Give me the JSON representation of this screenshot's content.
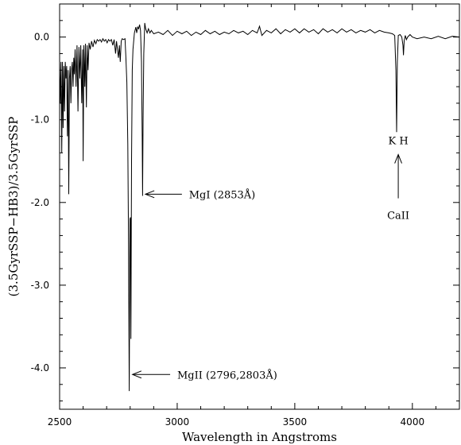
{
  "chart_data": {
    "type": "line",
    "title": "",
    "xlabel": "Wavelength in Angstroms",
    "ylabel": "(3.5GyrSSP−HB3)/3.5GyrSSP",
    "xlim": [
      2500,
      4200
    ],
    "ylim": [
      -4.5,
      0.4
    ],
    "x_ticks": [
      2500,
      3000,
      3500,
      4000
    ],
    "x_tick_labels": [
      "2500",
      "3000",
      "3500",
      "4000"
    ],
    "y_ticks": [
      0.0,
      -1.0,
      -2.0,
      -3.0,
      -4.0
    ],
    "y_tick_labels": [
      "0.0",
      "-1.0",
      "-2.0",
      "-3.0",
      "-4.0"
    ],
    "grid": false,
    "line_color": "#000000",
    "series": [
      {
        "points": [
          [
            2500,
            -0.3
          ],
          [
            2503,
            -0.8
          ],
          [
            2506,
            -0.3
          ],
          [
            2509,
            -1.4
          ],
          [
            2512,
            -0.3
          ],
          [
            2515,
            -1.1
          ],
          [
            2518,
            -0.35
          ],
          [
            2521,
            -0.9
          ],
          [
            2524,
            -0.3
          ],
          [
            2527,
            -0.5
          ],
          [
            2530,
            -0.35
          ],
          [
            2533,
            -1.2
          ],
          [
            2536,
            -0.4
          ],
          [
            2539,
            -1.9
          ],
          [
            2542,
            -0.5
          ],
          [
            2545,
            -0.35
          ],
          [
            2548,
            -0.8
          ],
          [
            2551,
            -0.4
          ],
          [
            2554,
            -0.3
          ],
          [
            2557,
            -0.6
          ],
          [
            2560,
            -0.25
          ],
          [
            2563,
            -0.45
          ],
          [
            2566,
            -0.15
          ],
          [
            2570,
            -0.6
          ],
          [
            2574,
            -0.1
          ],
          [
            2578,
            -0.9
          ],
          [
            2582,
            -0.12
          ],
          [
            2586,
            -0.5
          ],
          [
            2590,
            -0.1
          ],
          [
            2594,
            -0.8
          ],
          [
            2598,
            -0.15
          ],
          [
            2600,
            -1.5
          ],
          [
            2603,
            -0.1
          ],
          [
            2607,
            -0.6
          ],
          [
            2610,
            -0.08
          ],
          [
            2614,
            -0.85
          ],
          [
            2617,
            -0.1
          ],
          [
            2621,
            -0.4
          ],
          [
            2625,
            -0.07
          ],
          [
            2630,
            -0.15
          ],
          [
            2636,
            -0.05
          ],
          [
            2642,
            -0.12
          ],
          [
            2648,
            -0.04
          ],
          [
            2654,
            -0.08
          ],
          [
            2660,
            -0.03
          ],
          [
            2666,
            -0.05
          ],
          [
            2672,
            -0.03
          ],
          [
            2678,
            -0.06
          ],
          [
            2684,
            -0.02
          ],
          [
            2690,
            -0.05
          ],
          [
            2696,
            -0.03
          ],
          [
            2702,
            -0.07
          ],
          [
            2708,
            -0.03
          ],
          [
            2714,
            -0.05
          ],
          [
            2720,
            -0.03
          ],
          [
            2726,
            -0.1
          ],
          [
            2732,
            -0.03
          ],
          [
            2738,
            -0.2
          ],
          [
            2742,
            -0.05
          ],
          [
            2746,
            -0.15
          ],
          [
            2750,
            -0.25
          ],
          [
            2754,
            -0.1
          ],
          [
            2758,
            -0.3
          ],
          [
            2762,
            -0.05
          ],
          [
            2766,
            -0.02
          ],
          [
            2772,
            -0.03
          ],
          [
            2778,
            -0.02
          ],
          [
            2782,
            -0.25
          ],
          [
            2786,
            -0.55
          ],
          [
            2790,
            -1.3
          ],
          [
            2793,
            -2.5
          ],
          [
            2796,
            -4.28
          ],
          [
            2799,
            -2.2
          ],
          [
            2801,
            -2.18
          ],
          [
            2803,
            -3.65
          ],
          [
            2806,
            -1.5
          ],
          [
            2809,
            -0.4
          ],
          [
            2812,
            -0.15
          ],
          [
            2818,
            0.05
          ],
          [
            2824,
            0.12
          ],
          [
            2828,
            0.05
          ],
          [
            2832,
            0.12
          ],
          [
            2836,
            0.1
          ],
          [
            2840,
            0.15
          ],
          [
            2844,
            0.08
          ],
          [
            2848,
            -0.3
          ],
          [
            2851,
            -1.2
          ],
          [
            2853,
            -1.92
          ],
          [
            2855,
            -1.0
          ],
          [
            2858,
            -0.2
          ],
          [
            2862,
            0.17
          ],
          [
            2866,
            0.1
          ],
          [
            2872,
            0.05
          ],
          [
            2878,
            0.1
          ],
          [
            2884,
            0.05
          ],
          [
            2890,
            0.08
          ],
          [
            2900,
            0.04
          ],
          [
            2920,
            0.06
          ],
          [
            2940,
            0.03
          ],
          [
            2960,
            0.08
          ],
          [
            2980,
            0.02
          ],
          [
            3000,
            0.07
          ],
          [
            3020,
            0.04
          ],
          [
            3040,
            0.07
          ],
          [
            3060,
            0.02
          ],
          [
            3080,
            0.06
          ],
          [
            3100,
            0.03
          ],
          [
            3120,
            0.08
          ],
          [
            3140,
            0.04
          ],
          [
            3160,
            0.07
          ],
          [
            3180,
            0.03
          ],
          [
            3200,
            0.06
          ],
          [
            3220,
            0.04
          ],
          [
            3240,
            0.08
          ],
          [
            3260,
            0.05
          ],
          [
            3280,
            0.07
          ],
          [
            3300,
            0.03
          ],
          [
            3320,
            0.08
          ],
          [
            3340,
            0.05
          ],
          [
            3350,
            0.13
          ],
          [
            3360,
            0.02
          ],
          [
            3380,
            0.08
          ],
          [
            3400,
            0.05
          ],
          [
            3420,
            0.1
          ],
          [
            3440,
            0.04
          ],
          [
            3460,
            0.09
          ],
          [
            3480,
            0.06
          ],
          [
            3500,
            0.1
          ],
          [
            3520,
            0.05
          ],
          [
            3540,
            0.1
          ],
          [
            3560,
            0.06
          ],
          [
            3580,
            0.09
          ],
          [
            3600,
            0.04
          ],
          [
            3620,
            0.1
          ],
          [
            3640,
            0.06
          ],
          [
            3660,
            0.09
          ],
          [
            3680,
            0.05
          ],
          [
            3700,
            0.1
          ],
          [
            3720,
            0.06
          ],
          [
            3740,
            0.09
          ],
          [
            3760,
            0.05
          ],
          [
            3780,
            0.08
          ],
          [
            3800,
            0.06
          ],
          [
            3820,
            0.09
          ],
          [
            3840,
            0.05
          ],
          [
            3860,
            0.08
          ],
          [
            3880,
            0.06
          ],
          [
            3900,
            0.05
          ],
          [
            3915,
            0.04
          ],
          [
            3925,
            0.02
          ],
          [
            3930,
            -0.4
          ],
          [
            3933,
            -1.15
          ],
          [
            3936,
            -0.3
          ],
          [
            3940,
            0.02
          ],
          [
            3948,
            0.03
          ],
          [
            3955,
            0.0
          ],
          [
            3960,
            -0.1
          ],
          [
            3962,
            -0.22
          ],
          [
            3965,
            -0.05
          ],
          [
            3970,
            0.02
          ],
          [
            3975,
            -0.03
          ],
          [
            3980,
            0.0
          ],
          [
            3990,
            0.03
          ],
          [
            4000,
            0.0
          ],
          [
            4020,
            -0.02
          ],
          [
            4050,
            0.0
          ],
          [
            4080,
            -0.02
          ],
          [
            4110,
            0.01
          ],
          [
            4140,
            -0.02
          ],
          [
            4170,
            0.01
          ],
          [
            4200,
            0.0
          ]
        ]
      }
    ],
    "annotations": [
      {
        "text": "MgI (2853Å)",
        "arrow_tip": [
          2865,
          -1.9
        ],
        "arrow_tail": [
          3020,
          -1.9
        ],
        "text_at": [
          3050,
          -1.9
        ]
      },
      {
        "text": "MgII (2796,2803Å)",
        "arrow_tip": [
          2810,
          -4.08
        ],
        "arrow_tail": [
          2970,
          -4.08
        ],
        "text_at": [
          3000,
          -4.08
        ]
      },
      {
        "text": "K H",
        "text_at": [
          3940,
          -1.25
        ]
      },
      {
        "text": "CaII",
        "arrow_tip": [
          3940,
          -1.42
        ],
        "arrow_tail": [
          3940,
          -1.95
        ],
        "text_at": [
          3940,
          -2.15
        ]
      }
    ]
  }
}
